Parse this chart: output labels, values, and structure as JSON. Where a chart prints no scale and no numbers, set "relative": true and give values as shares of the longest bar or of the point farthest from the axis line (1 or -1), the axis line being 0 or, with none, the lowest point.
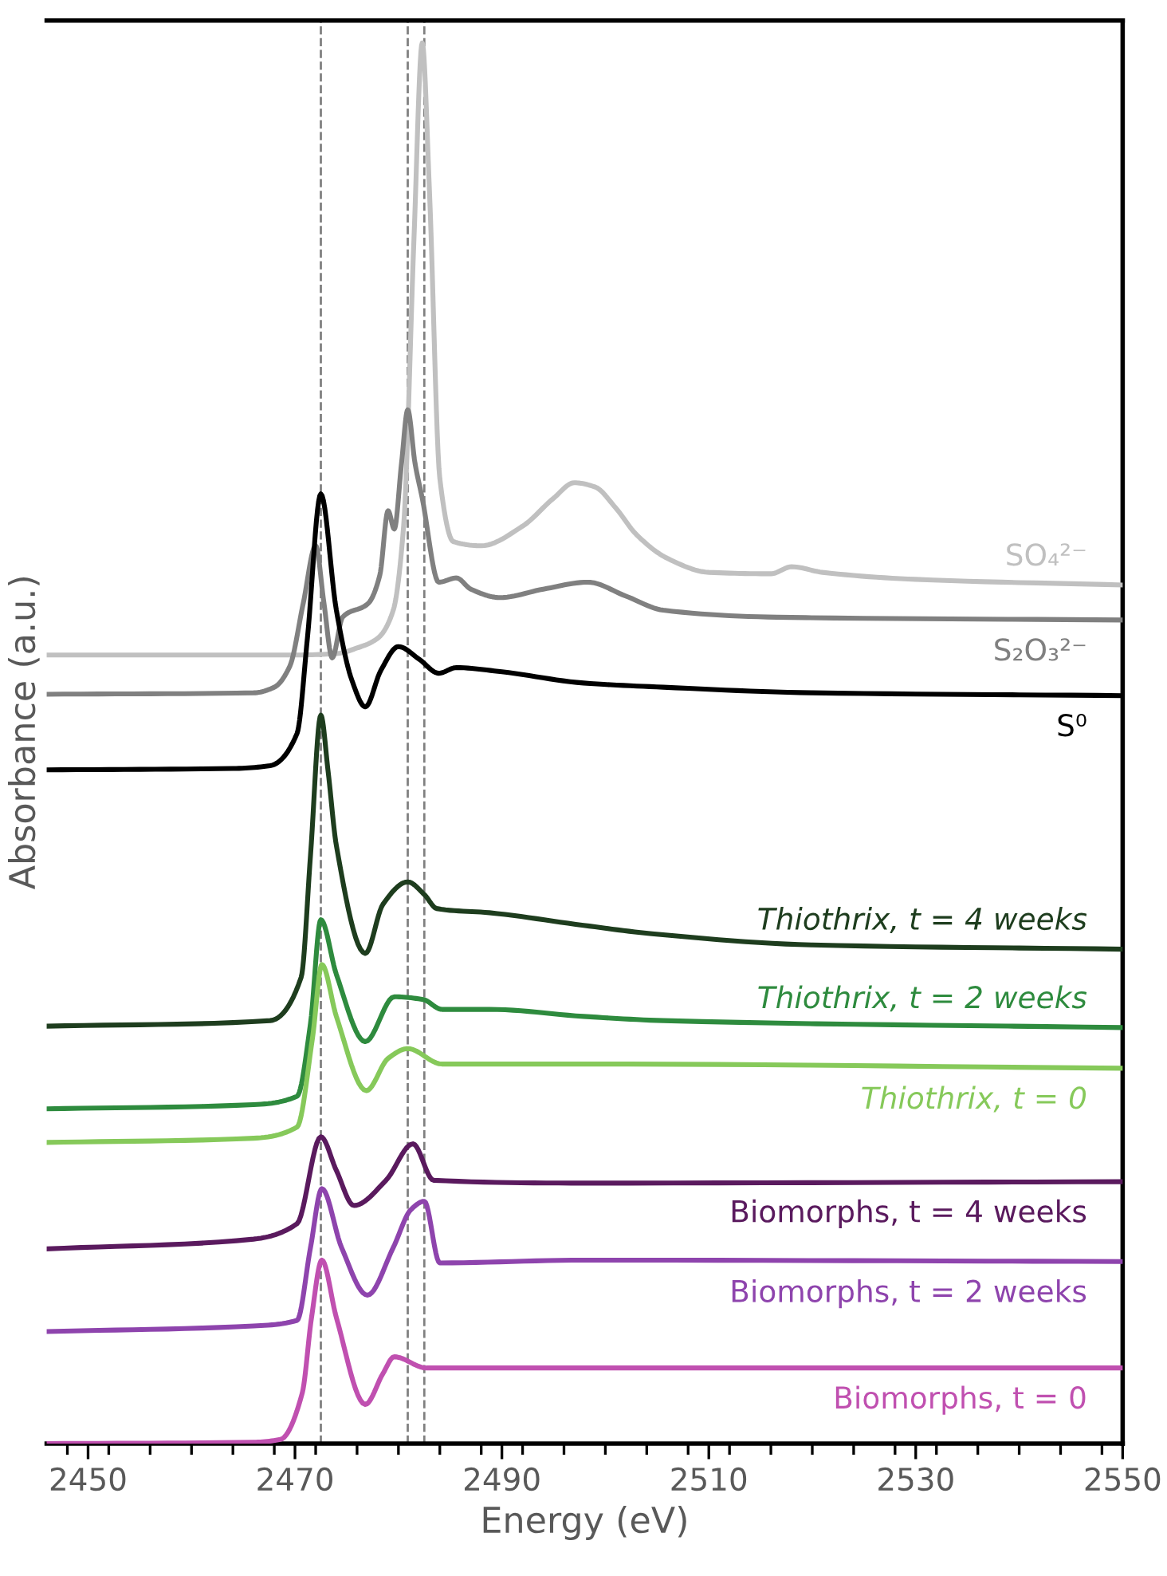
{
  "chart_data": {
    "type": "line",
    "relative": true,
    "xlabel": "Energy (eV)",
    "ylabel": "Absorbance (a.u.)",
    "xlim": [
      2446,
      2550
    ],
    "xticks": [
      2450,
      2470,
      2490,
      2510,
      2530,
      2550
    ],
    "grid": false,
    "legend": false,
    "marker": "none",
    "line_style": "solid",
    "ref_lines": [
      {
        "axis": "x",
        "value": 2472.5,
        "color": "#808080",
        "line_style": "dashed"
      },
      {
        "axis": "x",
        "value": 2480.9,
        "color": "#808080",
        "line_style": "dashed"
      },
      {
        "axis": "x",
        "value": 2482.5,
        "color": "#808080",
        "line_style": "dashed"
      }
    ],
    "series": [
      {
        "name": "SO₄²⁻",
        "color": "#c0c0c0",
        "x": [
          2446,
          2470,
          2474,
          2476,
          2478,
          2479.5,
          2480.5,
          2481.5,
          2482.3,
          2483,
          2484,
          2485.3,
          2488,
          2492,
          2495,
          2497,
          2499,
          2501,
          2503,
          2506,
          2510,
          2516,
          2518,
          2521,
          2530,
          2550
        ],
        "values": [
          0.563,
          0.563,
          0.564,
          0.568,
          0.575,
          0.595,
          0.655,
          0.86,
          1.0,
          0.894,
          0.689,
          0.644,
          0.641,
          0.655,
          0.675,
          0.686,
          0.683,
          0.668,
          0.649,
          0.632,
          0.622,
          0.621,
          0.626,
          0.622,
          0.617,
          0.613
        ]
      },
      {
        "name": "S₂O₃²⁻",
        "color": "#808080",
        "x": [
          2446,
          2466,
          2468,
          2469.5,
          2470.8,
          2472.0,
          2472.8,
          2473.6,
          2474.6,
          2477.1,
          2478.2,
          2479.0,
          2479.6,
          2480.3,
          2480.9,
          2481.6,
          2482.3,
          2483.9,
          2485.6,
          2487,
          2489.8,
          2494,
          2498.3,
          2502,
          2505.6,
          2516.6,
          2550
        ],
        "values": [
          0.535,
          0.536,
          0.54,
          0.555,
          0.6,
          0.641,
          0.6,
          0.561,
          0.59,
          0.6,
          0.62,
          0.666,
          0.653,
          0.7,
          0.738,
          0.7,
          0.675,
          0.615,
          0.618,
          0.61,
          0.604,
          0.61,
          0.615,
          0.605,
          0.595,
          0.59,
          0.588
        ]
      },
      {
        "name": "S⁰",
        "color": "#000000",
        "x": [
          2446,
          2464,
          2467.6,
          2470.2,
          2471.2,
          2472.5,
          2474.0,
          2475.5,
          2476.8,
          2478.3,
          2480.0,
          2482,
          2483.9,
          2485.6,
          2490,
          2497.9,
          2505.6,
          2520,
          2550
        ],
        "values": [
          0.481,
          0.482,
          0.484,
          0.507,
          0.575,
          0.678,
          0.595,
          0.545,
          0.526,
          0.552,
          0.569,
          0.56,
          0.55,
          0.554,
          0.551,
          0.543,
          0.54,
          0.536,
          0.534
        ]
      },
      {
        "name": "Thiothrix, t = 4 weeks",
        "color": "#1e3d1e",
        "x": [
          2446,
          2467.6,
          2470.6,
          2471.5,
          2472.5,
          2473.2,
          2474,
          2476.8,
          2478.5,
          2480.9,
          2482.5,
          2483.7,
          2488.8,
          2497.9,
          2504.5,
          2520,
          2550
        ],
        "values": [
          0.298,
          0.302,
          0.333,
          0.42,
          0.52,
          0.48,
          0.427,
          0.35,
          0.385,
          0.401,
          0.392,
          0.382,
          0.379,
          0.37,
          0.364,
          0.356,
          0.353
        ]
      },
      {
        "name": "Thiothrix, t = 2 weeks",
        "color": "#2e8b3e",
        "x": [
          2446,
          2466,
          2470.2,
          2471.5,
          2472.5,
          2474,
          2476.8,
          2479.6,
          2482.4,
          2484.2,
          2488.8,
          2497.9,
          2505.6,
          2550
        ],
        "values": [
          0.239,
          0.242,
          0.248,
          0.3,
          0.374,
          0.335,
          0.287,
          0.319,
          0.317,
          0.31,
          0.31,
          0.305,
          0.302,
          0.297
        ]
      },
      {
        "name": "Thiothrix, t = 0",
        "color": "#86c95a",
        "x": [
          2446,
          2466,
          2470.2,
          2471.7,
          2472.6,
          2474,
          2476.9,
          2479,
          2480.9,
          2484.2,
          2497.9,
          2550
        ],
        "values": [
          0.215,
          0.218,
          0.226,
          0.29,
          0.342,
          0.305,
          0.252,
          0.275,
          0.282,
          0.271,
          0.271,
          0.268
        ]
      },
      {
        "name": "Biomorphs, t = 4 weeks",
        "color": "#5a1a5e",
        "x": [
          2446,
          2466,
          2470.2,
          2472.5,
          2474,
          2475.7,
          2478.8,
          2481.4,
          2483.4,
          2497.9,
          2550
        ],
        "values": [
          0.139,
          0.146,
          0.157,
          0.219,
          0.195,
          0.17,
          0.188,
          0.214,
          0.188,
          0.186,
          0.187
        ]
      },
      {
        "name": "Biomorphs, t = 2 weeks",
        "color": "#8e44ad",
        "x": [
          2446,
          2466,
          2470.2,
          2471.5,
          2472.6,
          2474.5,
          2477,
          2479.5,
          2481.2,
          2482.5,
          2484,
          2497.9,
          2550
        ],
        "values": [
          0.08,
          0.084,
          0.088,
          0.14,
          0.182,
          0.14,
          0.106,
          0.14,
          0.167,
          0.173,
          0.129,
          0.131,
          0.13
        ]
      },
      {
        "name": "Biomorphs, t = 0",
        "color": "#c050b0",
        "x": [
          2446,
          2466,
          2468.6,
          2470.7,
          2471.6,
          2472.6,
          2474,
          2476.8,
          2478.5,
          2479.6,
          2482.7,
          2497.9,
          2550
        ],
        "values": [
          0.0,
          0.001,
          0.003,
          0.036,
          0.09,
          0.131,
          0.09,
          0.028,
          0.05,
          0.062,
          0.054,
          0.054,
          0.054
        ]
      }
    ]
  }
}
